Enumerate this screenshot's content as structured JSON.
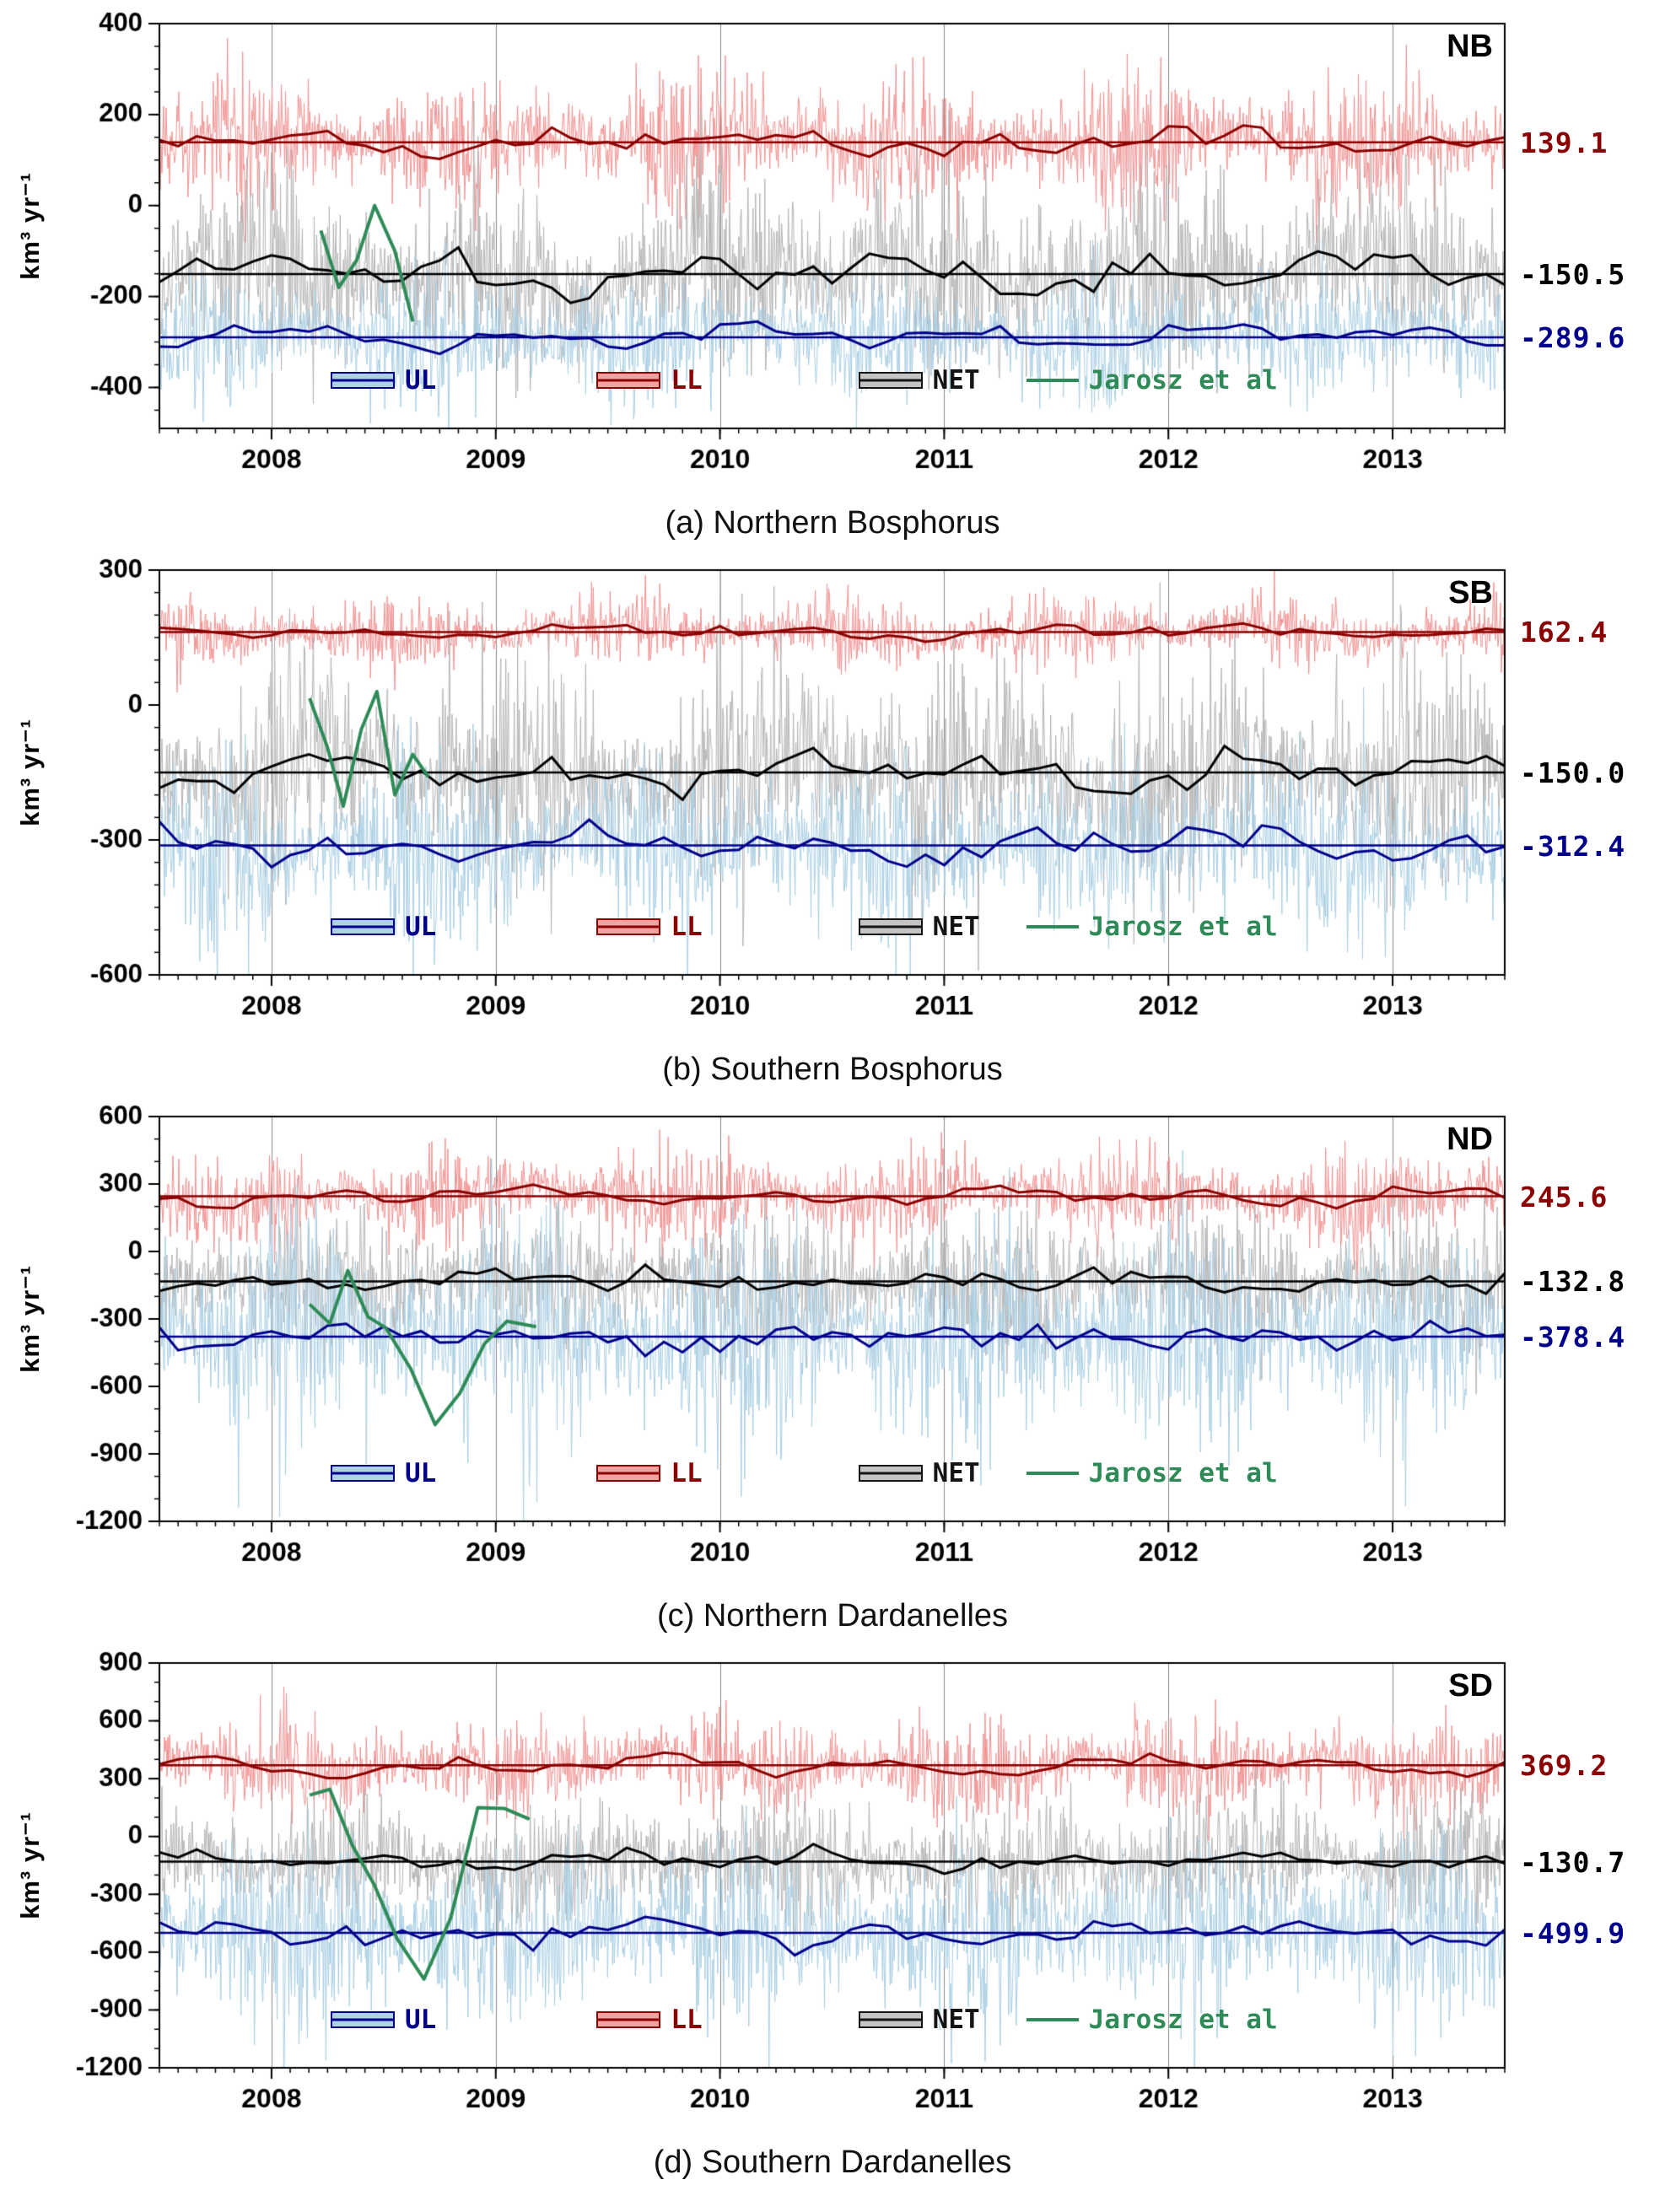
{
  "figure": {
    "legend_items": [
      {
        "label": "UL",
        "type": "box",
        "fill": "#aed0e8",
        "edge": "#00008b",
        "text_color": "#00008b"
      },
      {
        "label": "LL",
        "type": "box",
        "fill": "#f4a1a1",
        "edge": "#8b0000",
        "text_color": "#8b0000"
      },
      {
        "label": "NET",
        "type": "box",
        "fill": "#c4c4c4",
        "edge": "#141414",
        "text_color": "#141414"
      },
      {
        "label": "Jarosz et al",
        "type": "line",
        "fill": "#2e8b57",
        "edge": "#2e8b57",
        "text_color": "#2e8b57"
      }
    ]
  },
  "chart_data": [
    {
      "type": "line",
      "tag": "NB",
      "caption": "(a) Northern Bosphorus",
      "ylabel": "km³ yr⁻¹",
      "xlim": [
        2007.5,
        2013.5
      ],
      "ylim": [
        -490,
        400
      ],
      "yticks": [
        -400,
        -200,
        0,
        200,
        400
      ],
      "ytick_minor_step": 50,
      "xticks": [
        2008,
        2009,
        2010,
        2011,
        2012,
        2013
      ],
      "grid": "vertical-years",
      "series": [
        {
          "name": "LL",
          "mean": 139.1,
          "mean_label": "139.1",
          "raw_color": "#f29292",
          "smooth_color": "#8b0000",
          "noise_sd": 58,
          "wiggle_amp": 22
        },
        {
          "name": "NET",
          "mean": -150.5,
          "mean_label": "-150.5",
          "raw_color": "#b5b5b5",
          "smooth_color": "#000000",
          "noise_sd": 92,
          "wiggle_amp": 42
        },
        {
          "name": "UL",
          "mean": -289.6,
          "mean_label": "-289.6",
          "raw_color": "#a9cfe4",
          "smooth_color": "#00008b",
          "noise_sd": 58,
          "wiggle_amp": 24
        }
      ],
      "jarosz": {
        "label": "Jarosz et al",
        "color": "#2e8b57",
        "points": [
          [
            2008.22,
            -55
          ],
          [
            2008.3,
            -180
          ],
          [
            2008.38,
            -120
          ],
          [
            2008.46,
            0
          ],
          [
            2008.55,
            -100
          ],
          [
            2008.63,
            -255
          ]
        ]
      }
    },
    {
      "type": "line",
      "tag": "SB",
      "caption": "(b) Southern Bosphorus",
      "ylabel": "km³ yr⁻¹",
      "xlim": [
        2007.5,
        2013.5
      ],
      "ylim": [
        -600,
        300
      ],
      "yticks": [
        -600,
        -300,
        0,
        300
      ],
      "ytick_minor_step": 50,
      "xticks": [
        2008,
        2009,
        2010,
        2011,
        2012,
        2013
      ],
      "grid": "vertical-years",
      "series": [
        {
          "name": "LL",
          "mean": 162.4,
          "mean_label": "162.4",
          "raw_color": "#f29292",
          "smooth_color": "#8b0000",
          "noise_sd": 30,
          "wiggle_amp": 14
        },
        {
          "name": "NET",
          "mean": -150.0,
          "mean_label": "-150.0",
          "raw_color": "#b5b5b5",
          "smooth_color": "#000000",
          "noise_sd": 105,
          "wiggle_amp": 42
        },
        {
          "name": "UL",
          "mean": -312.4,
          "mean_label": "-312.4",
          "raw_color": "#a9cfe4",
          "smooth_color": "#00008b",
          "noise_sd": 85,
          "wiggle_amp": 32
        }
      ],
      "jarosz": {
        "label": "Jarosz et al",
        "color": "#2e8b57",
        "points": [
          [
            2008.17,
            15
          ],
          [
            2008.25,
            -95
          ],
          [
            2008.32,
            -225
          ],
          [
            2008.4,
            -55
          ],
          [
            2008.47,
            30
          ],
          [
            2008.55,
            -200
          ],
          [
            2008.63,
            -110
          ],
          [
            2008.7,
            -160
          ]
        ]
      }
    },
    {
      "type": "line",
      "tag": "ND",
      "caption": "(c) Northern Dardanelles",
      "ylabel": "km³ yr⁻¹",
      "xlim": [
        2007.5,
        2013.5
      ],
      "ylim": [
        -1200,
        600
      ],
      "yticks": [
        -1200,
        -900,
        -600,
        -300,
        0,
        300,
        600
      ],
      "ytick_minor_step": 100,
      "xticks": [
        2008,
        2009,
        2010,
        2011,
        2012,
        2013
      ],
      "grid": "vertical-years",
      "series": [
        {
          "name": "LL",
          "mean": 245.6,
          "mean_label": "245.6",
          "raw_color": "#f29292",
          "smooth_color": "#8b0000",
          "noise_sd": 85,
          "wiggle_amp": 40
        },
        {
          "name": "NET",
          "mean": -132.8,
          "mean_label": "-132.8",
          "raw_color": "#b5b5b5",
          "smooth_color": "#000000",
          "noise_sd": 135,
          "wiggle_amp": 38
        },
        {
          "name": "UL",
          "mean": -378.4,
          "mean_label": "-378.4",
          "raw_color": "#a9cfe4",
          "smooth_color": "#00008b",
          "noise_sd": 210,
          "wiggle_amp": 42
        }
      ],
      "jarosz": {
        "label": "Jarosz et al",
        "color": "#2e8b57",
        "points": [
          [
            2008.17,
            -235
          ],
          [
            2008.26,
            -320
          ],
          [
            2008.34,
            -85
          ],
          [
            2008.43,
            -290
          ],
          [
            2008.51,
            -340
          ],
          [
            2008.62,
            -520
          ],
          [
            2008.73,
            -770
          ],
          [
            2008.84,
            -630
          ],
          [
            2008.95,
            -410
          ],
          [
            2009.05,
            -310
          ],
          [
            2009.18,
            -335
          ]
        ]
      }
    },
    {
      "type": "line",
      "tag": "SD",
      "caption": "(d) Southern Dardanelles",
      "ylabel": "km³ yr⁻¹",
      "xlim": [
        2007.5,
        2013.5
      ],
      "ylim": [
        -1200,
        900
      ],
      "yticks": [
        -1200,
        -900,
        -600,
        -300,
        0,
        300,
        600,
        900
      ],
      "ytick_minor_step": 100,
      "xticks": [
        2008,
        2009,
        2010,
        2011,
        2012,
        2013
      ],
      "grid": "vertical-years",
      "series": [
        {
          "name": "LL",
          "mean": 369.2,
          "mean_label": "369.2",
          "raw_color": "#f29292",
          "smooth_color": "#8b0000",
          "noise_sd": 105,
          "wiggle_amp": 50
        },
        {
          "name": "NET",
          "mean": -130.7,
          "mean_label": "-130.7",
          "raw_color": "#b5b5b5",
          "smooth_color": "#000000",
          "noise_sd": 135,
          "wiggle_amp": 38
        },
        {
          "name": "UL",
          "mean": -499.9,
          "mean_label": "-499.9",
          "raw_color": "#a9cfe4",
          "smooth_color": "#00008b",
          "noise_sd": 205,
          "wiggle_amp": 46
        }
      ],
      "jarosz": {
        "label": "Jarosz et al",
        "color": "#2e8b57",
        "points": [
          [
            2008.17,
            215
          ],
          [
            2008.26,
            245
          ],
          [
            2008.36,
            -45
          ],
          [
            2008.46,
            -255
          ],
          [
            2008.56,
            -530
          ],
          [
            2008.68,
            -740
          ],
          [
            2008.8,
            -420
          ],
          [
            2008.92,
            150
          ],
          [
            2009.04,
            145
          ],
          [
            2009.15,
            90
          ]
        ]
      }
    }
  ]
}
